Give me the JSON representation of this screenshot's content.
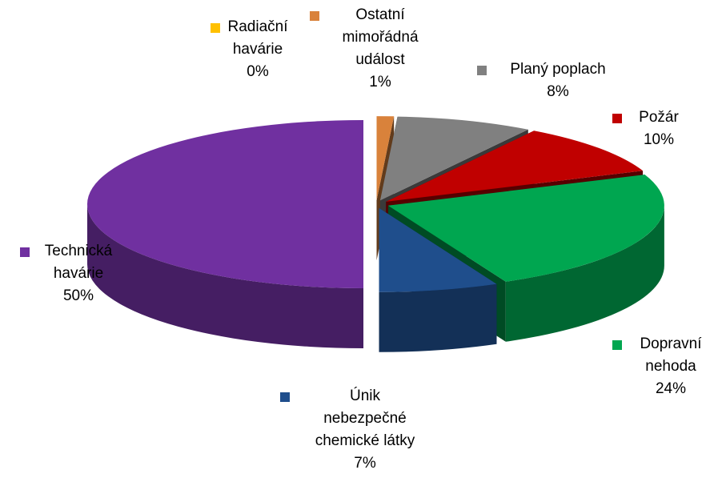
{
  "chart_data": {
    "type": "pie",
    "categories": [
      "Radiační\nhavárie",
      "Ostatní\nmimořádná\nudálost",
      "Planý poplach",
      "Požár",
      "Dopravní\nnehoda",
      "Únik\nnebezpečné\nchemické látky",
      "Technická\nhavárie"
    ],
    "values": [
      0,
      1,
      8,
      10,
      24,
      7,
      50
    ],
    "value_labels": [
      "0%",
      "1%",
      "8%",
      "10%",
      "24%",
      "7%",
      "50%"
    ],
    "colors": [
      "#ffc000",
      "#d9823b",
      "#808080",
      "#c00000",
      "#00a650",
      "#1f4e8c",
      "#7030a0"
    ]
  }
}
